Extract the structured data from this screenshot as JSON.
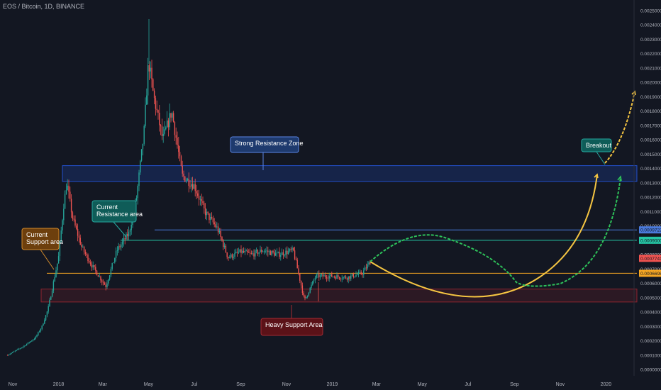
{
  "header": {
    "title": "EOS / Bitcoin, 1D, BINANCE"
  },
  "chart_data": {
    "type": "candlestick",
    "symbol": "EOS / Bitcoin, 1D, BINANCE",
    "ylim": [
      0,
      0.0025
    ],
    "y_ticks": [
      "0.0025000",
      "0.0024000",
      "0.0023000",
      "0.0022000",
      "0.0021000",
      "0.0020000",
      "0.0019000",
      "0.0018000",
      "0.0017000",
      "0.0016000",
      "0.0015000",
      "0.0014000",
      "0.0013000",
      "0.0012000",
      "0.0011000",
      "0.0010000",
      "0.0009000",
      "0.0008000",
      "0.0007000",
      "0.0006000",
      "0.0005000",
      "0.0004000",
      "0.0003000",
      "0.0002000",
      "0.0001000",
      "0.0000000"
    ],
    "x_ticks": [
      "Nov",
      "2018",
      "Mar",
      "May",
      "Jul",
      "Sep",
      "Nov",
      "2019",
      "Mar",
      "May",
      "Jul",
      "Sep",
      "Nov",
      "2020"
    ],
    "price_path": [
      [
        "2017-10-25",
        0.0001
      ],
      [
        "2017-11-15",
        0.00016
      ],
      [
        "2017-12-01",
        0.00022
      ],
      [
        "2017-12-10",
        0.0003
      ],
      [
        "2017-12-18",
        0.00042
      ],
      [
        "2017-12-25",
        0.0006
      ],
      [
        "2018-01-01",
        0.00078
      ],
      [
        "2018-01-08",
        0.00115
      ],
      [
        "2018-01-12",
        0.0013
      ],
      [
        "2018-01-20",
        0.00105
      ],
      [
        "2018-02-01",
        0.00085
      ],
      [
        "2018-02-15",
        0.00072
      ],
      [
        "2018-03-05",
        0.00058
      ],
      [
        "2018-03-20",
        0.00083
      ],
      [
        "2018-04-05",
        0.00095
      ],
      [
        "2018-04-15",
        0.0012
      ],
      [
        "2018-04-25",
        0.00165
      ],
      [
        "2018-05-01",
        0.00215
      ],
      [
        "2018-05-08",
        0.0019
      ],
      [
        "2018-05-20",
        0.0016
      ],
      [
        "2018-06-01",
        0.0018
      ],
      [
        "2018-06-15",
        0.00135
      ],
      [
        "2018-07-01",
        0.00128
      ],
      [
        "2018-07-15",
        0.0011
      ],
      [
        "2018-08-01",
        0.00098
      ],
      [
        "2018-08-15",
        0.00078
      ],
      [
        "2018-09-01",
        0.00082
      ],
      [
        "2018-09-15",
        0.0008
      ],
      [
        "2018-10-01",
        0.00083
      ],
      [
        "2018-10-20",
        0.0008
      ],
      [
        "2018-11-10",
        0.00083
      ],
      [
        "2018-11-20",
        0.0006
      ],
      [
        "2018-11-25",
        0.00048
      ],
      [
        "2018-12-10",
        0.00065
      ],
      [
        "2019-01-01",
        0.00065
      ],
      [
        "2019-01-20",
        0.00064
      ],
      [
        "2019-02-10",
        0.00067
      ],
      [
        "2019-02-22",
        0.00076
      ]
    ],
    "levels": [
      {
        "value": 0.00097235,
        "label": "0.00097235",
        "color": "#4a7adb"
      },
      {
        "value": 0.0009,
        "label": "0.00090000",
        "color": "#26c6a6"
      },
      {
        "value": 0.00077411,
        "label": "0.00077411",
        "color": "#f05350"
      },
      {
        "value": 0.00066981,
        "label": "0.00066981",
        "color": "#f5a623"
      }
    ],
    "zones": [
      {
        "name": "Strong Resistance Zone",
        "from": 0.00131,
        "to": 0.00142,
        "color": "#2962ff"
      },
      {
        "name": "Heavy Support Area",
        "from": 0.00047,
        "to": 0.00056,
        "color": "#b22833"
      }
    ]
  },
  "annotations": {
    "resistance_zone": "Strong Resistance Zone",
    "support_area": "Heavy Support Area",
    "current_support": [
      "Current",
      "Support area"
    ],
    "current_resistance": [
      "Current",
      "Resistance area"
    ],
    "breakout": "Breakout"
  },
  "colors": {
    "up": "#26a69a",
    "down": "#ef5350",
    "bg": "#131722"
  }
}
